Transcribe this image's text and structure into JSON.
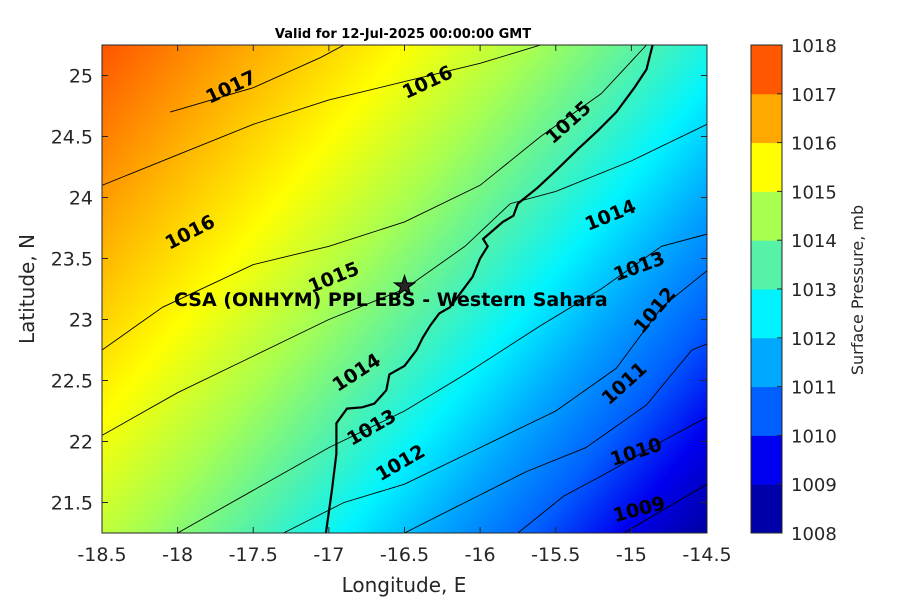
{
  "chart_data": {
    "type": "heatmap",
    "title": "Valid for 12-Jul-2025 00:00:00 GMT",
    "xlabel": "Longitude, E",
    "ylabel": "Latitude, N",
    "xlim": [
      -18.5,
      -14.5
    ],
    "ylim": [
      21.25,
      25.25
    ],
    "xticks": [
      "-18.5",
      "-18",
      "-17.5",
      "-17",
      "-16.5",
      "-16",
      "-15.5",
      "-15",
      "-14.5"
    ],
    "yticks": [
      "21.5",
      "22",
      "22.5",
      "23",
      "23.5",
      "24",
      "24.5",
      "25"
    ],
    "colorbar": {
      "label": "Surface Pressure, mb",
      "levels": [
        "1008",
        "1009",
        "1010",
        "1011",
        "1012",
        "1013",
        "1014",
        "1015",
        "1016",
        "1017",
        "1018"
      ],
      "colors": [
        "#0000a8",
        "#0000f0",
        "#0060ff",
        "#00a8ff",
        "#00f4ff",
        "#55f2a8",
        "#a8ff50",
        "#ffff00",
        "#ffa800",
        "#ff5800",
        "#ff0000"
      ]
    },
    "isobars": [
      {
        "level": 1009,
        "points": [
          [
            -15.05,
            21.25
          ],
          [
            -14.5,
            21.65
          ]
        ]
      },
      {
        "level": 1010,
        "points": [
          [
            -15.75,
            21.25
          ],
          [
            -15.45,
            21.55
          ],
          [
            -15.15,
            21.75
          ],
          [
            -14.8,
            22.0
          ],
          [
            -14.5,
            22.2
          ]
        ]
      },
      {
        "level": 1011,
        "points": [
          [
            -16.5,
            21.25
          ],
          [
            -16.1,
            21.5
          ],
          [
            -15.7,
            21.75
          ],
          [
            -15.3,
            21.95
          ],
          [
            -14.9,
            22.3
          ],
          [
            -14.6,
            22.75
          ],
          [
            -14.5,
            22.8
          ]
        ]
      },
      {
        "level": 1012,
        "points": [
          [
            -17.3,
            21.25
          ],
          [
            -16.9,
            21.5
          ],
          [
            -16.5,
            21.65
          ],
          [
            -16.0,
            21.95
          ],
          [
            -15.5,
            22.25
          ],
          [
            -15.1,
            22.6
          ],
          [
            -14.8,
            23.1
          ],
          [
            -14.5,
            23.4
          ]
        ]
      },
      {
        "level": 1013,
        "points": [
          [
            -18.0,
            21.25
          ],
          [
            -17.5,
            21.6
          ],
          [
            -17.0,
            21.95
          ],
          [
            -16.5,
            22.25
          ],
          [
            -16.1,
            22.55
          ],
          [
            -15.6,
            22.95
          ],
          [
            -15.2,
            23.25
          ],
          [
            -14.8,
            23.6
          ],
          [
            -14.5,
            23.7
          ]
        ]
      },
      {
        "level": 1014,
        "points": [
          [
            -18.5,
            22.05
          ],
          [
            -18.0,
            22.4
          ],
          [
            -17.5,
            22.7
          ],
          [
            -17.0,
            23.0
          ],
          [
            -16.5,
            23.25
          ],
          [
            -16.1,
            23.6
          ],
          [
            -15.8,
            23.95
          ],
          [
            -15.5,
            24.05
          ],
          [
            -15.0,
            24.3
          ],
          [
            -14.5,
            24.6
          ]
        ]
      },
      {
        "level": 1015,
        "points": [
          [
            -18.5,
            22.75
          ],
          [
            -18.1,
            23.1
          ],
          [
            -17.5,
            23.45
          ],
          [
            -17.0,
            23.6
          ],
          [
            -16.5,
            23.8
          ],
          [
            -16.0,
            24.1
          ],
          [
            -15.6,
            24.5
          ],
          [
            -15.2,
            24.85
          ],
          [
            -14.9,
            25.25
          ]
        ]
      },
      {
        "level": 1016,
        "points": [
          [
            -18.5,
            24.1
          ],
          [
            -18.0,
            24.35
          ],
          [
            -17.5,
            24.6
          ],
          [
            -17.0,
            24.8
          ],
          [
            -16.5,
            24.95
          ],
          [
            -16.0,
            25.1
          ],
          [
            -15.6,
            25.25
          ]
        ]
      },
      {
        "level": 1017,
        "points": [
          [
            -18.05,
            24.7
          ],
          [
            -17.5,
            24.9
          ],
          [
            -17.05,
            25.15
          ],
          [
            -16.9,
            25.25
          ]
        ]
      }
    ],
    "contour_labels": [
      {
        "text": "1017",
        "lon": -17.65,
        "lat": 24.91,
        "angle": -25
      },
      {
        "text": "1016",
        "lon": -16.35,
        "lat": 24.95,
        "angle": -25
      },
      {
        "text": "1015",
        "lon": -15.42,
        "lat": 24.62,
        "angle": -42
      },
      {
        "text": "1016",
        "lon": -17.92,
        "lat": 23.72,
        "angle": -27
      },
      {
        "text": "1015",
        "lon": -16.97,
        "lat": 23.35,
        "angle": -22
      },
      {
        "text": "1014",
        "lon": -15.14,
        "lat": 23.86,
        "angle": -22
      },
      {
        "text": "1013",
        "lon": -14.95,
        "lat": 23.44,
        "angle": -20
      },
      {
        "text": "1012",
        "lon": -14.85,
        "lat": 23.08,
        "angle": -50
      },
      {
        "text": "1014",
        "lon": -16.82,
        "lat": 22.57,
        "angle": -33
      },
      {
        "text": "1013",
        "lon": -16.72,
        "lat": 22.12,
        "angle": -30
      },
      {
        "text": "1011",
        "lon": -15.05,
        "lat": 22.48,
        "angle": -42
      },
      {
        "text": "1012",
        "lon": -16.53,
        "lat": 21.83,
        "angle": -30
      },
      {
        "text": "1010",
        "lon": -14.97,
        "lat": 21.92,
        "angle": -18
      },
      {
        "text": "1009",
        "lon": -14.95,
        "lat": 21.45,
        "angle": -15
      }
    ],
    "coastline": [
      [
        -17.02,
        21.25
      ],
      [
        -16.98,
        21.6
      ],
      [
        -16.95,
        21.9
      ],
      [
        -16.95,
        22.15
      ],
      [
        -16.88,
        22.27
      ],
      [
        -16.78,
        22.28
      ],
      [
        -16.7,
        22.31
      ],
      [
        -16.62,
        22.42
      ],
      [
        -16.6,
        22.55
      ],
      [
        -16.5,
        22.62
      ],
      [
        -16.42,
        22.75
      ],
      [
        -16.38,
        22.85
      ],
      [
        -16.33,
        22.95
      ],
      [
        -16.27,
        23.05
      ],
      [
        -16.2,
        23.1
      ],
      [
        -16.05,
        23.35
      ],
      [
        -16.0,
        23.5
      ],
      [
        -15.95,
        23.6
      ],
      [
        -15.98,
        23.66
      ],
      [
        -15.85,
        23.8
      ],
      [
        -15.78,
        23.85
      ],
      [
        -15.75,
        23.95
      ],
      [
        -15.62,
        24.08
      ],
      [
        -15.5,
        24.22
      ],
      [
        -15.35,
        24.4
      ],
      [
        -15.22,
        24.55
      ],
      [
        -15.1,
        24.7
      ],
      [
        -14.98,
        24.9
      ],
      [
        -14.9,
        25.05
      ],
      [
        -14.86,
        25.25
      ]
    ],
    "station": {
      "marker": "star",
      "lon": -16.5,
      "lat": 23.28
    },
    "annotation": "CSA (ONHYM) PPL EBS  - Western Sahara"
  }
}
